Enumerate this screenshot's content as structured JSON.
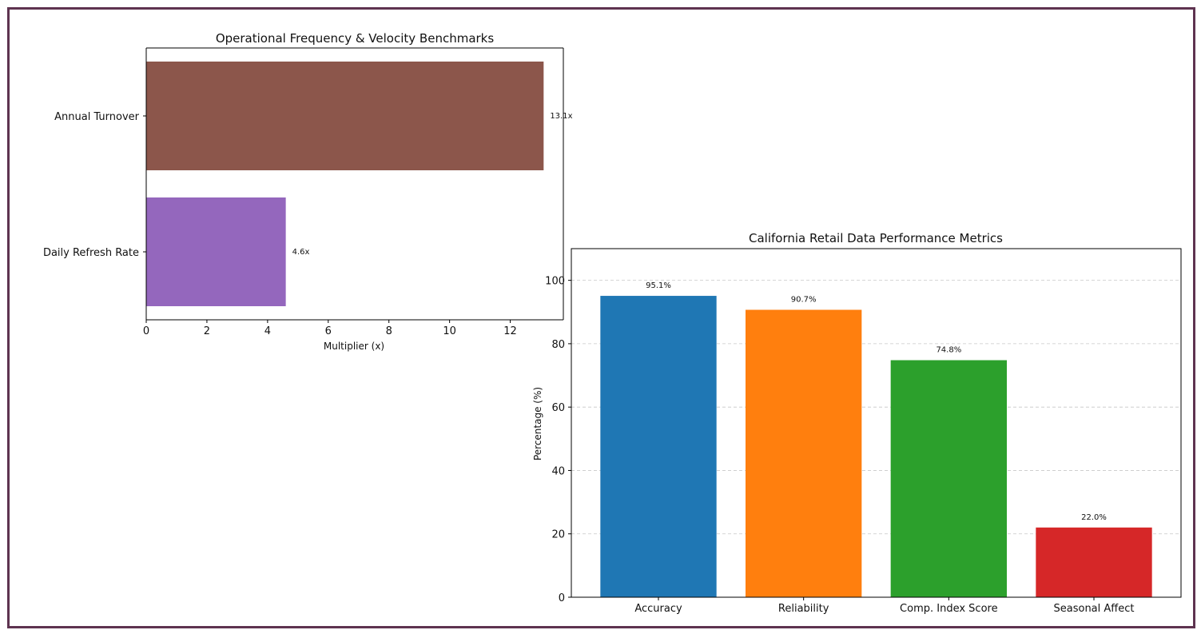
{
  "chart_data": [
    {
      "type": "bar",
      "orientation": "horizontal",
      "title": "Operational Frequency & Velocity Benchmarks",
      "xlabel": "Multiplier (x)",
      "ylabel": "",
      "categories": [
        "Annual Turnover",
        "Daily Refresh Rate"
      ],
      "values": [
        13.1,
        4.6
      ],
      "value_labels": [
        "13.1x",
        "4.6x"
      ],
      "colors": [
        "#8c564b",
        "#9467bd"
      ],
      "xlim": [
        0,
        13.75
      ],
      "xticks": [
        0,
        2,
        4,
        6,
        8,
        10,
        12
      ],
      "grid": false
    },
    {
      "type": "bar",
      "orientation": "vertical",
      "title": "California Retail Data Performance Metrics",
      "xlabel": "",
      "ylabel": "Percentage (%)",
      "categories": [
        "Accuracy",
        "Reliability",
        "Comp. Index Score",
        "Seasonal Affect"
      ],
      "values": [
        95.1,
        90.7,
        74.8,
        22.0
      ],
      "value_labels": [
        "95.1%",
        "90.7%",
        "74.8%",
        "22.0%"
      ],
      "colors": [
        "#1f77b4",
        "#ff7f0e",
        "#2ca02c",
        "#d62728"
      ],
      "ylim": [
        0,
        110
      ],
      "yticks": [
        0,
        20,
        40,
        60,
        80,
        100
      ],
      "grid": true,
      "grid_axis": "y",
      "grid_style": "dashed"
    }
  ]
}
